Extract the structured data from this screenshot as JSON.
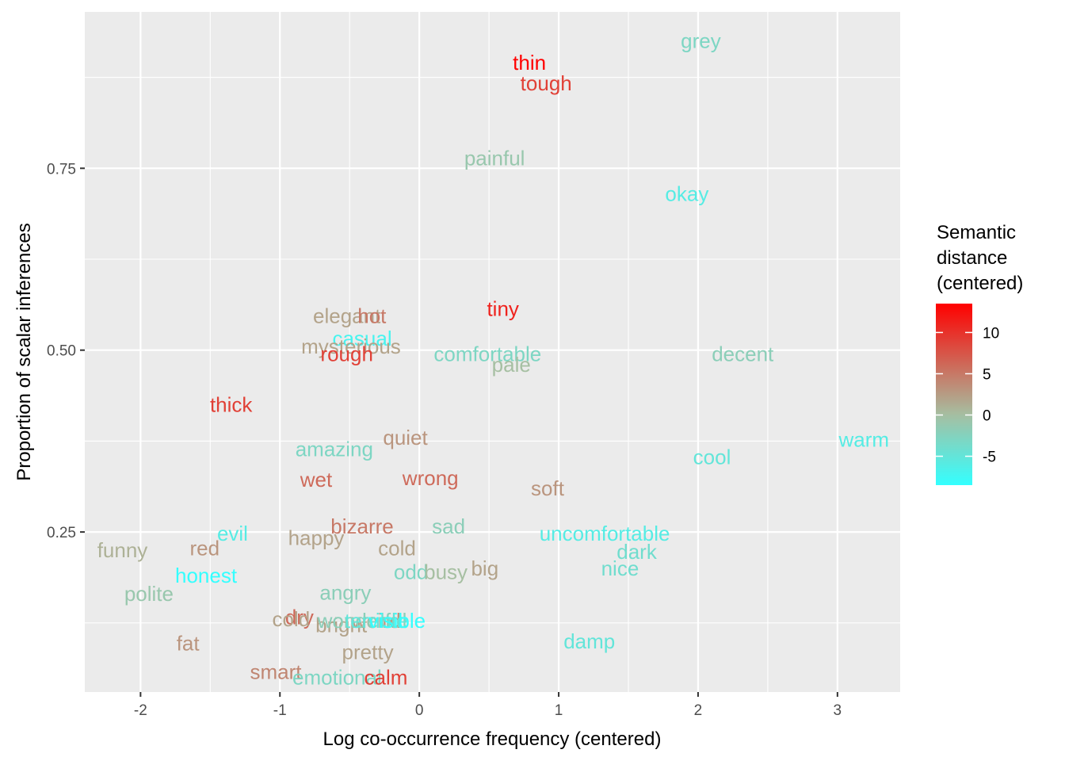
{
  "chart_data": {
    "type": "scatter",
    "xlabel": "Log co-occurrence frequency (centered)",
    "ylabel": "Proportion of scalar inferences",
    "xlim": [
      -2.4,
      3.45
    ],
    "ylim": [
      0.03,
      0.965
    ],
    "x_ticks": [
      -2,
      -1,
      0,
      1,
      2,
      3
    ],
    "x_tick_labels": [
      "-2",
      "-1",
      "0",
      "1",
      "2",
      "3"
    ],
    "y_ticks": [
      0.25,
      0.5,
      0.75
    ],
    "y_tick_labels": [
      "0.25",
      "0.50",
      "0.75"
    ],
    "grid": true,
    "legend": {
      "title_lines": [
        "Semantic",
        "distance",
        "(centered)"
      ],
      "position": "right",
      "min": -8.5,
      "max": 13.5,
      "ticks": [
        10,
        5,
        0,
        -5
      ],
      "tick_labels": [
        "10",
        "5",
        "0",
        "-5"
      ],
      "colors": {
        "low": "#33FFFF",
        "mid": "#A6BFA2",
        "high": "#FF0000"
      }
    },
    "points": [
      {
        "label": "grey",
        "x": 2.02,
        "y": 0.925,
        "color": -3
      },
      {
        "label": "thin",
        "x": 0.79,
        "y": 0.895,
        "color": 13.5
      },
      {
        "label": "tough",
        "x": 0.91,
        "y": 0.867,
        "color": 9
      },
      {
        "label": "painful",
        "x": 0.54,
        "y": 0.764,
        "color": -1
      },
      {
        "label": "okay",
        "x": 1.92,
        "y": 0.715,
        "color": -6
      },
      {
        "label": "tiny",
        "x": 0.6,
        "y": 0.557,
        "color": 11
      },
      {
        "label": "elegant",
        "x": -0.52,
        "y": 0.547,
        "color": 2
      },
      {
        "label": "hot",
        "x": -0.34,
        "y": 0.547,
        "color": 5
      },
      {
        "label": "casual",
        "x": -0.41,
        "y": 0.516,
        "color": -7
      },
      {
        "label": "mysterious",
        "x": -0.49,
        "y": 0.505,
        "color": 2
      },
      {
        "label": "rough",
        "x": -0.52,
        "y": 0.495,
        "color": 9
      },
      {
        "label": "comfortable",
        "x": 0.49,
        "y": 0.495,
        "color": -3
      },
      {
        "label": "pale",
        "x": 0.66,
        "y": 0.48,
        "color": 0
      },
      {
        "label": "decent",
        "x": 2.32,
        "y": 0.495,
        "color": -2
      },
      {
        "label": "thick",
        "x": -1.35,
        "y": 0.425,
        "color": 9
      },
      {
        "label": "amazing",
        "x": -0.61,
        "y": 0.364,
        "color": -3
      },
      {
        "label": "quiet",
        "x": -0.1,
        "y": 0.38,
        "color": 3
      },
      {
        "label": "warm",
        "x": 3.19,
        "y": 0.377,
        "color": -6
      },
      {
        "label": "cool",
        "x": 2.1,
        "y": 0.353,
        "color": -5
      },
      {
        "label": "wet",
        "x": -0.74,
        "y": 0.322,
        "color": 6
      },
      {
        "label": "wrong",
        "x": 0.08,
        "y": 0.324,
        "color": 6
      },
      {
        "label": "soft",
        "x": 0.92,
        "y": 0.31,
        "color": 3
      },
      {
        "label": "bizarre",
        "x": -0.41,
        "y": 0.258,
        "color": 5
      },
      {
        "label": "sad",
        "x": 0.21,
        "y": 0.258,
        "color": -2
      },
      {
        "label": "evil",
        "x": -1.34,
        "y": 0.248,
        "color": -6
      },
      {
        "label": "happy",
        "x": -0.74,
        "y": 0.242,
        "color": 2
      },
      {
        "label": "uncomfortable",
        "x": 1.33,
        "y": 0.248,
        "color": -6
      },
      {
        "label": "funny",
        "x": -2.13,
        "y": 0.225,
        "color": 1
      },
      {
        "label": "red",
        "x": -1.54,
        "y": 0.228,
        "color": 3
      },
      {
        "label": "cold",
        "x": -0.16,
        "y": 0.228,
        "color": 2
      },
      {
        "label": "dark",
        "x": 1.56,
        "y": 0.223,
        "color": -4
      },
      {
        "label": "big",
        "x": 0.47,
        "y": 0.2,
        "color": 2
      },
      {
        "label": "odd",
        "x": -0.06,
        "y": 0.195,
        "color": -3
      },
      {
        "label": "busy",
        "x": 0.19,
        "y": 0.195,
        "color": 0
      },
      {
        "label": "nice",
        "x": 1.44,
        "y": 0.2,
        "color": -4
      },
      {
        "label": "honest",
        "x": -1.53,
        "y": 0.19,
        "color": -8.5
      },
      {
        "label": "angry",
        "x": -0.53,
        "y": 0.167,
        "color": -2
      },
      {
        "label": "polite",
        "x": -1.94,
        "y": 0.165,
        "color": -1
      },
      {
        "label": "dry",
        "x": -0.86,
        "y": 0.133,
        "color": 6
      },
      {
        "label": "cold",
        "x": -0.92,
        "y": 0.13,
        "color": 2
      },
      {
        "label": "bright",
        "x": -0.56,
        "y": 0.122,
        "color": 2
      },
      {
        "label": "weird",
        "x": -0.31,
        "y": 0.128,
        "color": 3
      },
      {
        "label": "wonderful",
        "x": -0.41,
        "y": 0.128,
        "color": -2
      },
      {
        "label": "terrible",
        "x": -0.31,
        "y": 0.128,
        "color": -5
      },
      {
        "label": "visible",
        "x": -0.16,
        "y": 0.128,
        "color": -8.5
      },
      {
        "label": "fat",
        "x": -1.66,
        "y": 0.097,
        "color": 3
      },
      {
        "label": "damp",
        "x": 1.22,
        "y": 0.1,
        "color": -5
      },
      {
        "label": "pretty",
        "x": -0.37,
        "y": 0.085,
        "color": 2
      },
      {
        "label": "smart",
        "x": -1.03,
        "y": 0.058,
        "color": 4
      },
      {
        "label": "emotional",
        "x": -0.59,
        "y": 0.05,
        "color": -3
      },
      {
        "label": "calm",
        "x": -0.24,
        "y": 0.05,
        "color": 9
      }
    ]
  }
}
